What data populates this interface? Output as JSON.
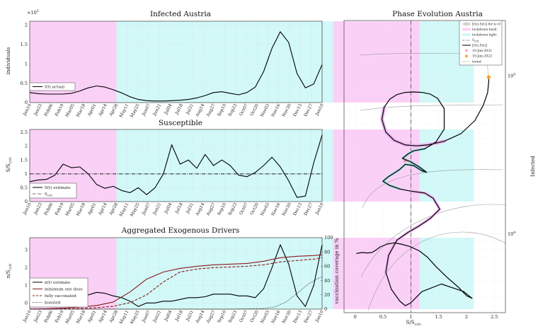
{
  "chart_data": [
    {
      "type": "line",
      "title": "Infected Austria",
      "ylabel": "individuals",
      "exponent": "×10",
      "exponent_power": "5",
      "ylim": [
        0,
        2.1
      ],
      "yticks": [
        "0",
        "0.5",
        "1",
        "1.5",
        "2"
      ],
      "ytick_values": [
        0,
        0.5,
        1,
        1.5,
        2
      ],
      "legend": [
        {
          "label": "I(t) actual"
        }
      ],
      "series": [
        {
          "name": "I(t) actual",
          "color": "#000000",
          "x": [
            0,
            3,
            6,
            9,
            12,
            15,
            18,
            21,
            24,
            27,
            30,
            33,
            36,
            39,
            42,
            45,
            48,
            51,
            54,
            57,
            60,
            63,
            66,
            69,
            72,
            75,
            78,
            81,
            84,
            87,
            90,
            93,
            96,
            99,
            102,
            105
          ],
          "values": [
            0.26,
            0.23,
            0.22,
            0.22,
            0.22,
            0.24,
            0.3,
            0.38,
            0.43,
            0.4,
            0.33,
            0.25,
            0.15,
            0.08,
            0.05,
            0.04,
            0.04,
            0.05,
            0.06,
            0.08,
            0.12,
            0.18,
            0.26,
            0.28,
            0.24,
            0.2,
            0.26,
            0.4,
            0.8,
            1.4,
            1.83,
            1.55,
            0.75,
            0.38,
            0.48,
            0.98
          ]
        }
      ]
    },
    {
      "type": "line",
      "title": "Susceptible",
      "ylabel": "S/S",
      "ylabel_sub": "crit",
      "ylim": [
        0,
        2.6
      ],
      "yticks": [
        "0",
        "0.5",
        "1",
        "1.5",
        "2",
        "2.5"
      ],
      "ytick_values": [
        0,
        0.5,
        1,
        1.5,
        2,
        2.5
      ],
      "legend": [
        {
          "label": "S(t) estimate"
        },
        {
          "label": "S",
          "sub": "crit"
        }
      ],
      "series": [
        {
          "name": "S(t) estimate",
          "color": "#000000",
          "x": [
            0,
            3,
            6,
            9,
            12,
            15,
            18,
            21,
            24,
            27,
            30,
            33,
            36,
            39,
            42,
            45,
            48,
            51,
            54,
            57,
            60,
            63,
            66,
            69,
            72,
            75,
            78,
            81,
            84,
            87,
            90,
            93,
            96,
            99,
            102,
            105
          ],
          "values": [
            0.72,
            0.78,
            0.8,
            0.95,
            1.35,
            1.22,
            1.25,
            1.0,
            0.62,
            0.48,
            0.55,
            0.4,
            0.32,
            0.5,
            0.25,
            0.5,
            1.0,
            2.05,
            1.35,
            1.5,
            1.2,
            1.7,
            1.3,
            1.5,
            1.3,
            0.95,
            0.9,
            1.05,
            1.3,
            1.6,
            1.25,
            0.75,
            0.15,
            0.2,
            1.4,
            2.4
          ]
        },
        {
          "name": "S",
          "color": "#333333",
          "dash": "dashdot",
          "x": [
            0,
            105
          ],
          "values": [
            1,
            1
          ]
        }
      ]
    },
    {
      "type": "line",
      "title": "Aggregated Exogenous Drivers",
      "ylabel": "n/S",
      "ylabel_sub": "crit",
      "ylim": [
        -0.35,
        3.7
      ],
      "yticks": [
        "0",
        "1",
        "2",
        "3"
      ],
      "ytick_values": [
        0,
        1,
        2,
        3
      ],
      "ylabel_right": "vaccination coverage in %",
      "ylim_right": [
        0,
        100
      ],
      "yticks_right": [
        "0",
        "20",
        "40",
        "60",
        "80",
        "100"
      ],
      "ytick_right_values": [
        0,
        20,
        40,
        60,
        80,
        100
      ],
      "legend": [
        {
          "label": "n(t) estimate"
        },
        {
          "label": "minimum one dose"
        },
        {
          "label": "fully vaccinated"
        },
        {
          "label": "boosted"
        }
      ],
      "series": [
        {
          "name": "n(t) estimate",
          "color": "#000000",
          "axis": "left",
          "x": [
            0,
            3,
            6,
            9,
            12,
            15,
            18,
            21,
            24,
            27,
            30,
            33,
            36,
            39,
            42,
            45,
            48,
            51,
            54,
            57,
            60,
            63,
            66,
            69,
            72,
            75,
            78,
            81,
            84,
            87,
            90,
            93,
            96,
            99,
            102,
            105
          ],
          "values": [
            0.3,
            0.1,
            0.5,
            0.35,
            0.8,
            0.55,
            0.6,
            0.45,
            0.6,
            0.55,
            0.4,
            0.3,
            0.1,
            -0.2,
            0.0,
            0.0,
            0.1,
            0.1,
            0.2,
            0.3,
            0.3,
            0.35,
            0.5,
            0.5,
            0.5,
            0.4,
            0.4,
            0.3,
            0.8,
            2.0,
            3.3,
            2.2,
            0.4,
            -0.2,
            1.0,
            3.3
          ]
        },
        {
          "name": "minimum one dose",
          "color": "#8b1a1a",
          "axis": "right",
          "x": [
            0,
            6,
            12,
            18,
            24,
            30,
            36,
            42,
            48,
            54,
            60,
            66,
            72,
            78,
            84,
            90,
            96,
            102,
            105
          ],
          "values": [
            0,
            0.5,
            1.5,
            3,
            5,
            10,
            24,
            42,
            52,
            57,
            60,
            62,
            63,
            64,
            67,
            72,
            74,
            75,
            76
          ]
        },
        {
          "name": "fully vaccinated",
          "color": "#8b1a1a",
          "dash": "dashed",
          "axis": "right",
          "x": [
            0,
            6,
            12,
            18,
            24,
            30,
            36,
            42,
            48,
            54,
            60,
            66,
            72,
            78,
            84,
            90,
            96,
            102,
            105
          ],
          "values": [
            0,
            0.1,
            0.5,
            1,
            2,
            4,
            9,
            20,
            38,
            52,
            56,
            58,
            59,
            60,
            62,
            66,
            68,
            70,
            72
          ]
        },
        {
          "name": "boosted",
          "color": "#000000",
          "dash": "dotted",
          "axis": "right",
          "x": [
            0,
            70,
            78,
            84,
            88,
            92,
            96,
            100,
            104,
            105
          ],
          "values": [
            0,
            0,
            0.5,
            1,
            3,
            10,
            22,
            35,
            44,
            45
          ]
        }
      ]
    },
    {
      "type": "line",
      "title": "Phase Evolution Austria",
      "xlabel": "S/S",
      "xlabel_sub": "crit",
      "ylabel": "Infected",
      "xlim": [
        -0.2,
        2.7
      ],
      "xticks": [
        "0",
        "0.5",
        "1",
        "1.5",
        "2",
        "2.5"
      ],
      "xtick_values": [
        0,
        0.5,
        1,
        1.5,
        2,
        2.5
      ],
      "ylim_log": [
        3.5,
        5.35
      ],
      "yticks": [
        "10",
        "10"
      ],
      "ytick_powers": [
        "4",
        "5"
      ],
      "ytick_values": [
        10000,
        100000
      ],
      "legend": [
        {
          "label": "[I(t),S(t)] for n=0"
        },
        {
          "label": "lockdown hard"
        },
        {
          "label": "lockdown light"
        },
        {
          "label": "S",
          "sub": "crit"
        },
        {
          "label": "[I(t),S(t)]"
        },
        {
          "label": "10-Jan-2021"
        },
        {
          "label": "10-Jan-2022"
        },
        {
          "label": "trend"
        }
      ],
      "trajectory": {
        "S": [
          2.4,
          2.4,
          2.38,
          2.3,
          2.15,
          1.9,
          1.6,
          1.3,
          1.1,
          0.9,
          0.7,
          0.55,
          0.48,
          0.52,
          0.62,
          0.75,
          0.9,
          1.05,
          1.2,
          1.35,
          1.48,
          1.6,
          1.6,
          1.45,
          1.25,
          1.05,
          0.95,
          0.85,
          1.0,
          1.15,
          1.28,
          1.2,
          1.05,
          0.9,
          0.8,
          0.7,
          0.6,
          0.5,
          0.62,
          0.8,
          1.0,
          1.25,
          1.4,
          1.52,
          1.35,
          1.15,
          0.95,
          0.75,
          0.6,
          0.55,
          0.65,
          0.8,
          0.9,
          1.0,
          1.2,
          1.55,
          1.95,
          2.1,
          2.0,
          1.85,
          1.65,
          1.45,
          1.3,
          1.15,
          0.98,
          0.82,
          0.7,
          0.58,
          0.45,
          0.38,
          0.3,
          0.22,
          0.12,
          0.02
        ],
        "I": [
          98000,
          92000,
          78000,
          65000,
          52000,
          43000,
          38500,
          36500,
          36000,
          36500,
          39000,
          44000,
          53000,
          63000,
          71000,
          76000,
          78500,
          79000,
          78500,
          76500,
          72000,
          62000,
          46000,
          38000,
          34500,
          33500,
          32000,
          30000,
          28500,
          26500,
          24500,
          25000,
          27000,
          27500,
          25500,
          24200,
          23000,
          21500,
          20200,
          19200,
          18600,
          18100,
          16800,
          14300,
          12500,
          11200,
          10200,
          9100,
          7300,
          5700,
          4450,
          3750,
          3500,
          3650,
          4300,
          4800,
          4300,
          3900,
          4050,
          4600,
          5300,
          6200,
          7100,
          7800,
          8300,
          8600,
          8750,
          8600,
          8250,
          7900,
          7600,
          7550,
          7600,
          7500
        ]
      },
      "marker_2021": {
        "label": "10-Jan-2021",
        "S": 0.9,
        "I": 29000,
        "color": "#d62728"
      },
      "marker_2022": {
        "label": "10-Jan-2022",
        "S": 2.4,
        "I": 98000,
        "color": "#ff8c00"
      }
    }
  ],
  "x_dates": [
    "Jan10",
    "Jan23",
    "Feb06",
    "Feb19",
    "Mar05",
    "Mar18",
    "Apr01",
    "Apr14",
    "Apr28",
    "May11",
    "May25",
    "Jun07",
    "Jun21",
    "Jul04",
    "Jul18",
    "Jul31",
    "Aug14",
    "Aug27",
    "Sep10",
    "Sep23",
    "Oct07",
    "Oct20",
    "Nov03",
    "Nov16",
    "Nov30",
    "Dec13",
    "Dec27",
    "Jan10"
  ],
  "shade_regions": {
    "hard": [
      [
        0,
        8
      ],
      [
        28,
        36
      ],
      [
        89,
        95
      ]
    ],
    "light": [
      [
        8,
        28
      ],
      [
        36,
        41
      ]
    ]
  },
  "colors": {
    "hard_lockdown": "#fbd0f7",
    "light_lockdown": "#d2f8f8",
    "trajectory_hard_glow": "#ecb6f0",
    "trajectory_light_glow": "#9bd9d9",
    "vaccination": "#8b1a1a",
    "marker_2022": "#ff8c00",
    "trend": "#8b8b3c"
  }
}
